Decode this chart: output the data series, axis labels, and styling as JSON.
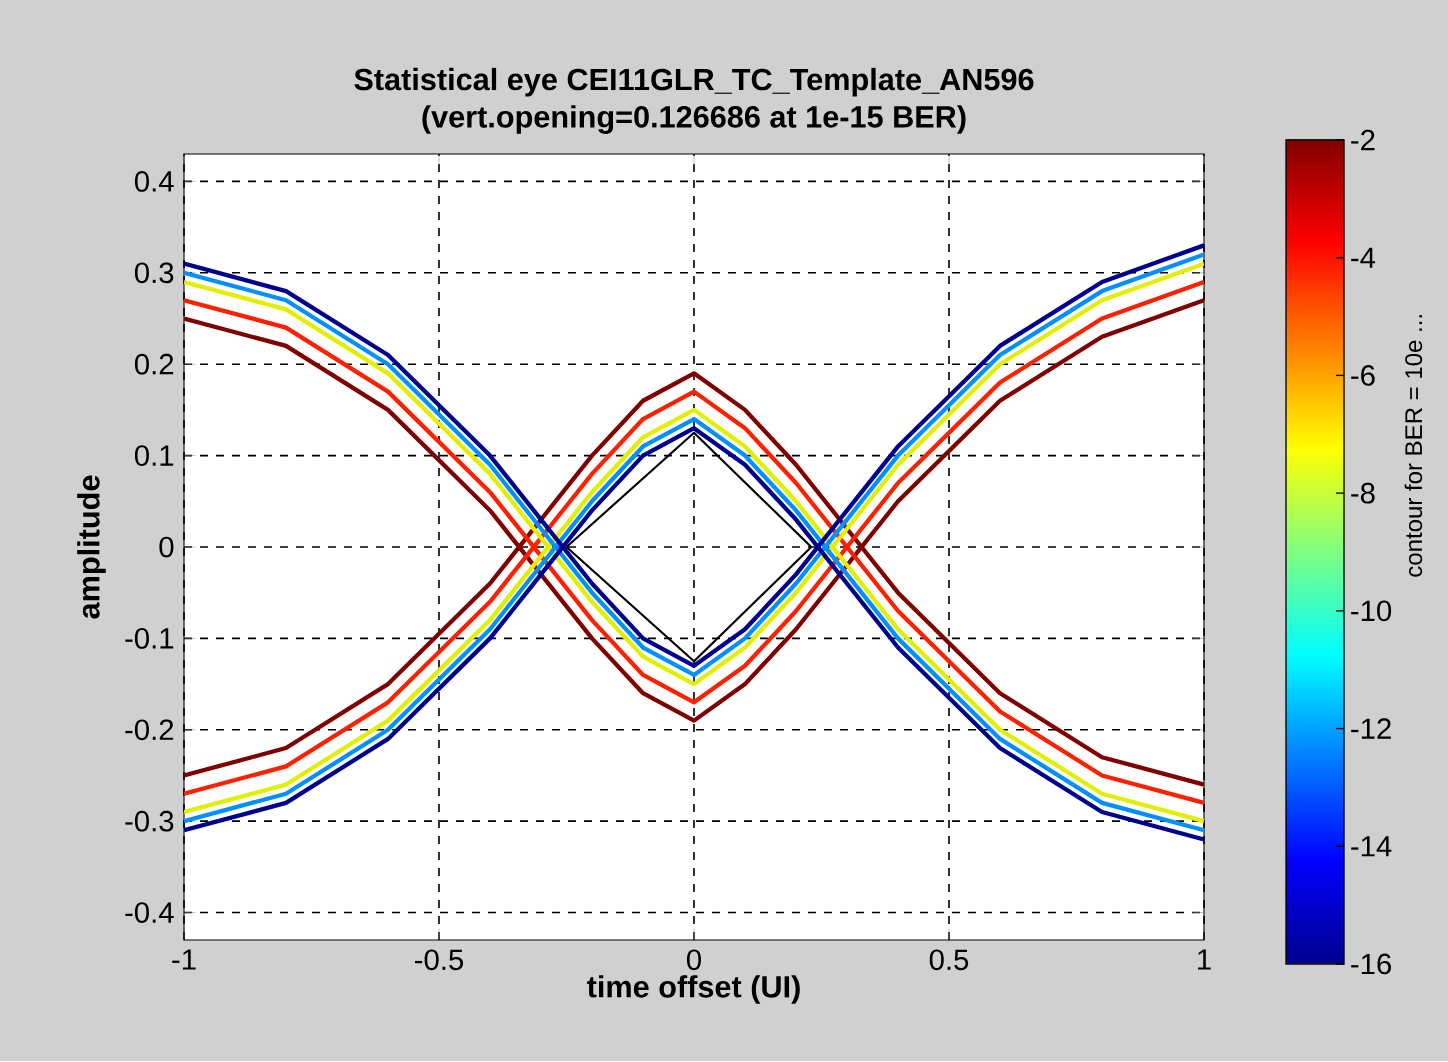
{
  "chart_data": {
    "type": "line",
    "title": "Statistical eye CEI11GLR_TC_Template_AN596",
    "subtitle": "(vert.opening=0.126686 at 1e-15 BER)",
    "xlabel": "time offset (UI)",
    "ylabel": "amplitude",
    "clabel": "contour for BER = 10e ...",
    "xlim": [
      -1,
      1
    ],
    "ylim": [
      -0.43,
      0.43
    ],
    "xticks": [
      -1,
      -0.5,
      0,
      0.5,
      1
    ],
    "yticks": [
      -0.4,
      -0.3,
      -0.2,
      -0.1,
      0,
      0.1,
      0.2,
      0.3,
      0.4
    ],
    "clim": [
      -16,
      -2
    ],
    "cticks": [
      -16,
      -14,
      -12,
      -10,
      -8,
      -6,
      -4,
      -2
    ],
    "grid": true,
    "x": [
      -1,
      -0.8,
      -0.6,
      -0.4,
      -0.3,
      -0.2,
      -0.1,
      0,
      0.1,
      0.2,
      0.3,
      0.4,
      0.6,
      0.8,
      1
    ],
    "series": [
      {
        "color": "#800000",
        "values": [
          0.25,
          0.22,
          0.15,
          0.04,
          -0.03,
          -0.1,
          -0.16,
          -0.19,
          -0.15,
          -0.09,
          -0.02,
          0.05,
          0.16,
          0.23,
          0.27
        ]
      },
      {
        "color": "#800000",
        "values": [
          -0.25,
          -0.22,
          -0.15,
          -0.04,
          0.03,
          0.1,
          0.16,
          0.19,
          0.15,
          0.09,
          0.02,
          -0.05,
          -0.16,
          -0.23,
          -0.26
        ]
      },
      {
        "color": "#ff2000",
        "values": [
          0.27,
          0.24,
          0.17,
          0.06,
          -0.01,
          -0.08,
          -0.14,
          -0.17,
          -0.13,
          -0.07,
          0.0,
          0.07,
          0.18,
          0.25,
          0.29
        ]
      },
      {
        "color": "#ff2000",
        "values": [
          -0.27,
          -0.24,
          -0.17,
          -0.06,
          0.01,
          0.08,
          0.14,
          0.17,
          0.13,
          0.07,
          0.0,
          -0.07,
          -0.18,
          -0.25,
          -0.28
        ]
      },
      {
        "color": "#e0f000",
        "values": [
          0.29,
          0.26,
          0.19,
          0.08,
          0.01,
          -0.06,
          -0.12,
          -0.15,
          -0.11,
          -0.05,
          0.02,
          0.09,
          0.2,
          0.27,
          0.31
        ]
      },
      {
        "color": "#e0f000",
        "values": [
          -0.29,
          -0.26,
          -0.19,
          -0.08,
          -0.01,
          0.06,
          0.12,
          0.15,
          0.11,
          0.05,
          -0.02,
          -0.09,
          -0.2,
          -0.27,
          -0.3
        ]
      },
      {
        "color": "#0090ff",
        "values": [
          0.3,
          0.27,
          0.2,
          0.09,
          0.02,
          -0.05,
          -0.11,
          -0.14,
          -0.1,
          -0.04,
          0.03,
          0.1,
          0.21,
          0.28,
          0.32
        ]
      },
      {
        "color": "#0090ff",
        "values": [
          -0.3,
          -0.27,
          -0.2,
          -0.09,
          -0.02,
          0.05,
          0.11,
          0.14,
          0.1,
          0.04,
          -0.03,
          -0.1,
          -0.21,
          -0.28,
          -0.31
        ]
      },
      {
        "color": "#00008f",
        "values": [
          0.31,
          0.28,
          0.21,
          0.1,
          0.03,
          -0.04,
          -0.1,
          -0.13,
          -0.09,
          -0.03,
          0.04,
          0.11,
          0.22,
          0.29,
          0.33
        ]
      },
      {
        "color": "#00008f",
        "values": [
          -0.31,
          -0.28,
          -0.21,
          -0.1,
          -0.03,
          0.04,
          0.1,
          0.13,
          0.09,
          0.03,
          -0.04,
          -0.11,
          -0.22,
          -0.29,
          -0.32
        ]
      },
      {
        "color": "#000000",
        "x": [
          -0.25,
          0,
          0.23
        ],
        "values": [
          0,
          0.125,
          0
        ]
      },
      {
        "color": "#000000",
        "x": [
          -0.25,
          0,
          0.23
        ],
        "values": [
          0,
          -0.125,
          0
        ]
      }
    ]
  }
}
